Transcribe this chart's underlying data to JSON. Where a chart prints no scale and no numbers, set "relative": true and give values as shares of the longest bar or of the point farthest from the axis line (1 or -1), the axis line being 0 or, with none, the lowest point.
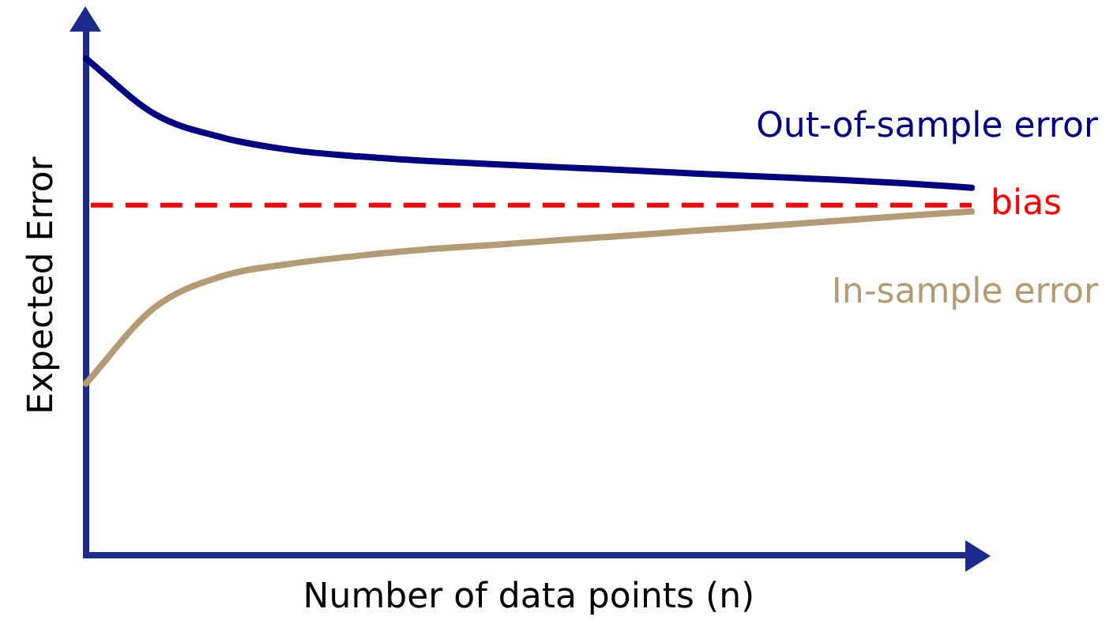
{
  "chart_data": {
    "type": "line",
    "relative": true,
    "xlabel": "Number of data points (n)",
    "ylabel": "Expected Error",
    "categories": [
      null,
      null,
      null,
      null,
      null,
      null,
      null,
      null,
      null,
      null,
      null,
      null,
      null,
      null
    ],
    "series": [
      {
        "name": "Out-of-sample error",
        "color": "#000080",
        "values": [
          1,
          0.889,
          0.841,
          0.816,
          0.803,
          0.794,
          0.787,
          0.781,
          0.775,
          0.768,
          0.762,
          0.756,
          0.749,
          0.74
        ]
      },
      {
        "name": "In-sample error",
        "color": "#b39b76",
        "values": [
          0.346,
          0.498,
          0.562,
          0.587,
          0.603,
          0.616,
          0.625,
          0.635,
          0.644,
          0.654,
          0.663,
          0.673,
          0.683,
          0.692
        ]
      }
    ],
    "ref_lines": [
      {
        "axis": "y",
        "value": 0.705,
        "label": "bias",
        "color": "#ff0000",
        "line_style": "dashed"
      }
    ]
  }
}
